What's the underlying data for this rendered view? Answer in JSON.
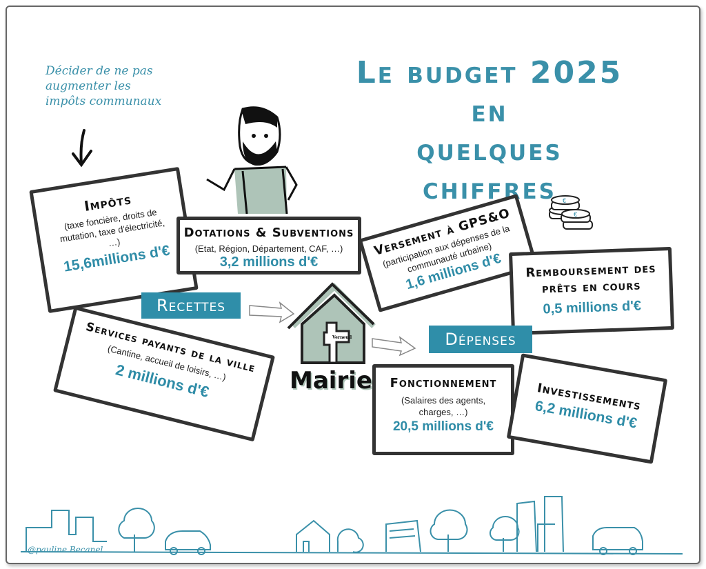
{
  "title": {
    "line1": "Le budget 2025 en",
    "line2": "quelques chiffres"
  },
  "note": "Décider de ne pas augmenter les impôts communaux",
  "labels": {
    "recettes": "Recettes",
    "depenses": "Dépenses",
    "mairie": "Mairie",
    "sign": "Verneuil"
  },
  "recettes": {
    "impots": {
      "title": "Impôts",
      "detail": "(taxe foncière, droits de mutation, taxe d'électricité, …)",
      "value": "15,6millions d'€"
    },
    "dotations": {
      "title": "Dotations & Subventions",
      "detail": "(Etat, Région, Département, CAF, …)",
      "value": "3,2 millions d'€"
    },
    "services": {
      "title": "Services payants de la ville",
      "detail": "(Cantine, accueil de loisirs, …)",
      "value": "2 millions d'€"
    }
  },
  "depenses": {
    "versement": {
      "title": "Versement à GPS&O",
      "detail": "(participation aux dépenses de la communauté urbaine)",
      "value": "1,6 millions d'€"
    },
    "remboursement": {
      "title": "Remboursement des prêts en cours",
      "value": "0,5 millions d'€"
    },
    "fonctionnement": {
      "title": "Fonctionnement",
      "detail": "(Salaires des agents, charges, …)",
      "value": "20,5 millions d'€"
    },
    "investissements": {
      "title": "Investissements",
      "value": "6,2 millions d'€"
    }
  },
  "signature": "@pauline Becanel",
  "colors": {
    "accent": "#2f8ea9",
    "house": "#aec4b8",
    "ink": "#333333"
  }
}
